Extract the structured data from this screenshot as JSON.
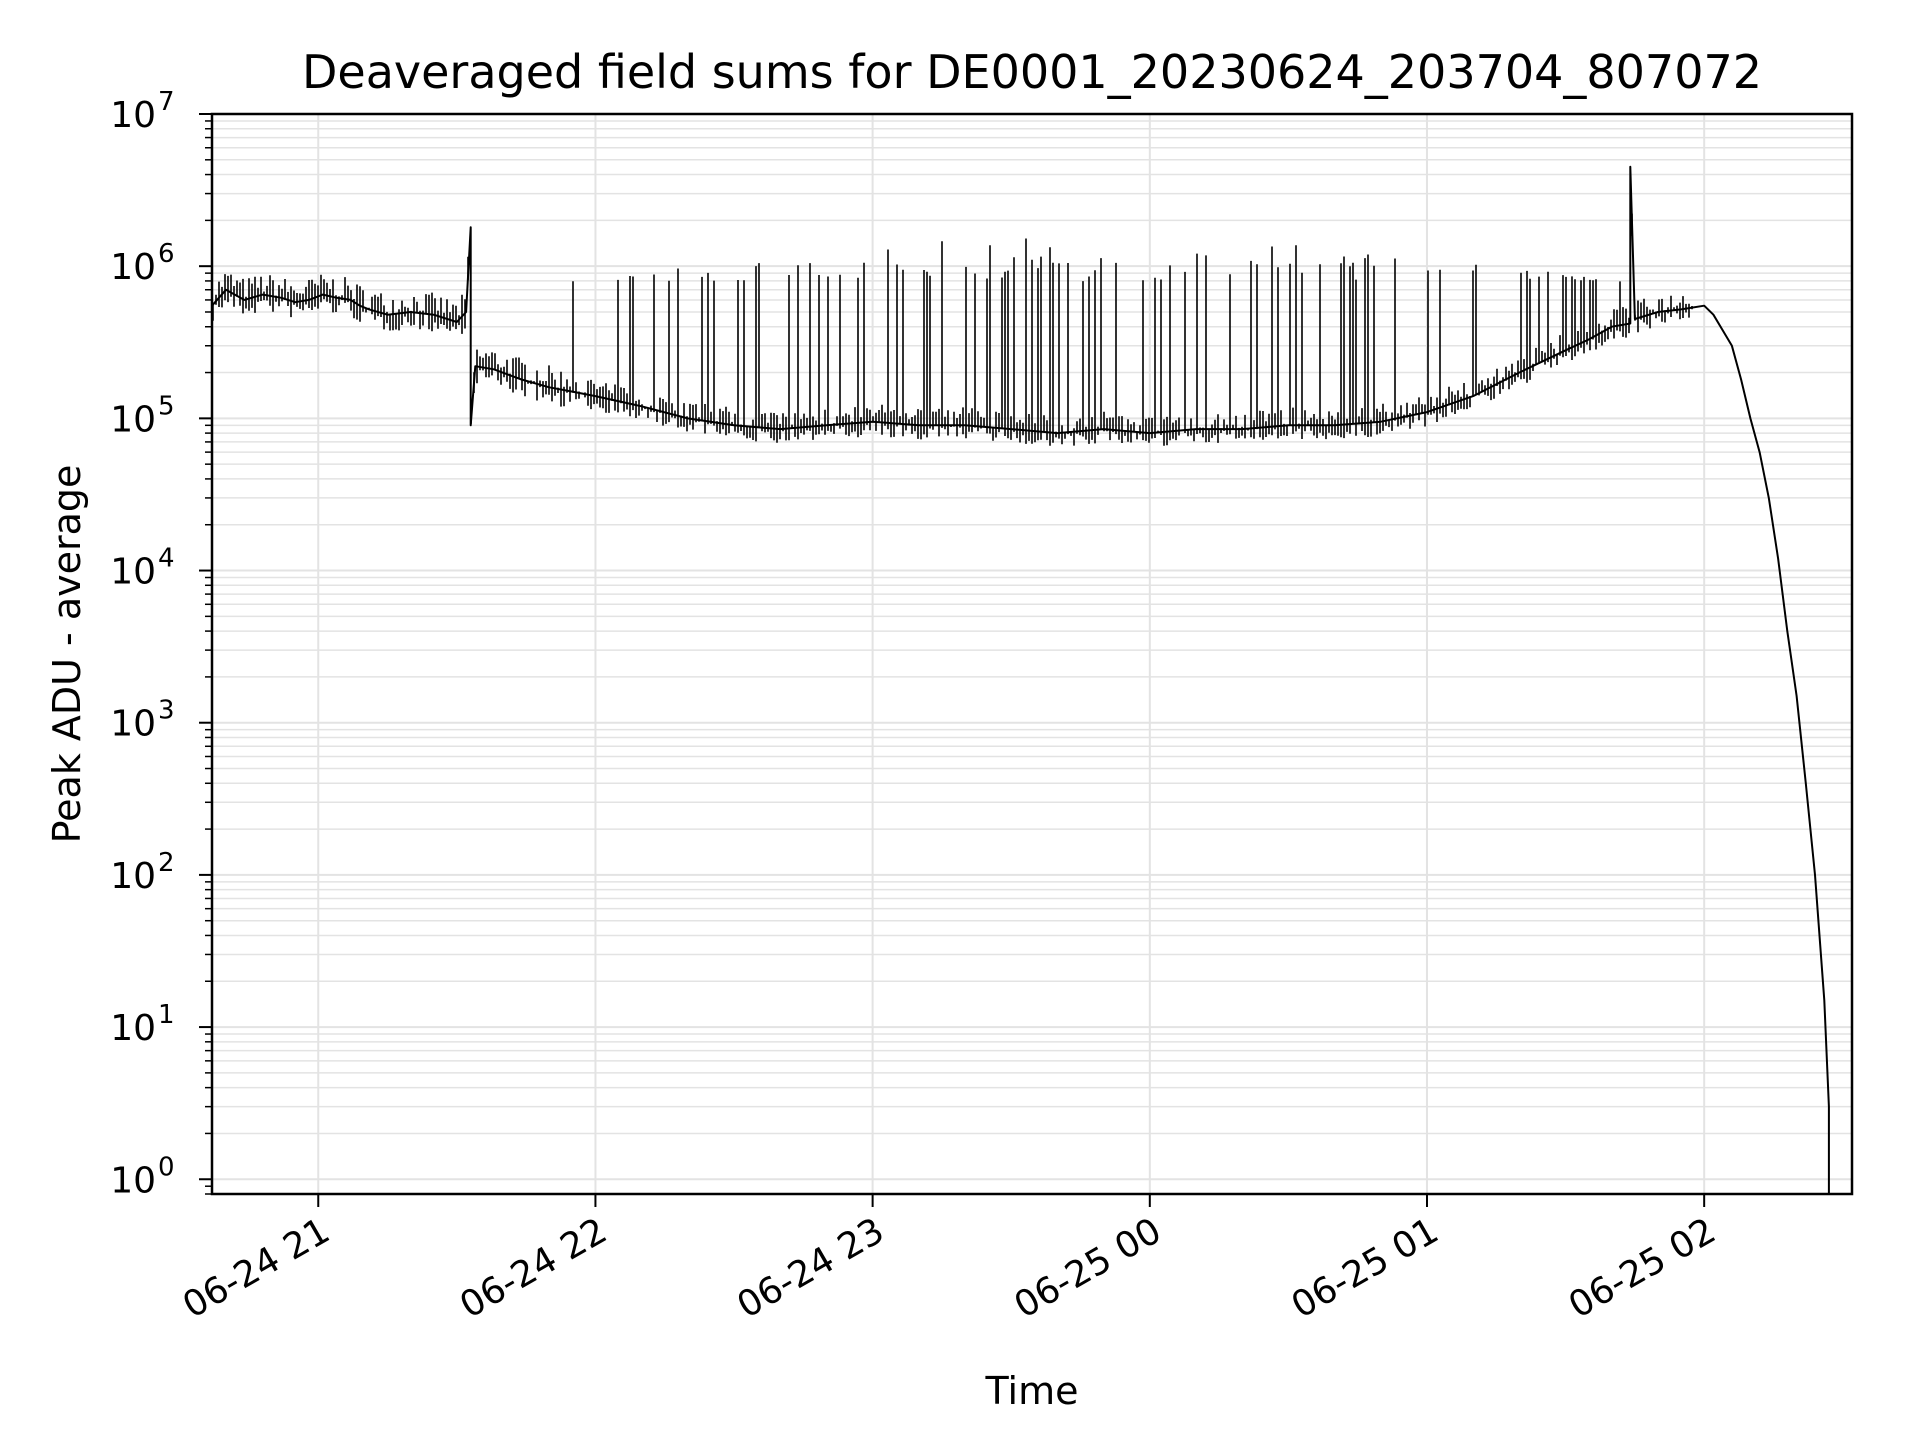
{
  "chart_data": {
    "type": "line",
    "title": "Deaveraged field sums for DE0001_20230624_203704_807072",
    "xlabel": "Time",
    "ylabel": "Peak ADU - average",
    "yscale": "log",
    "ylim": [
      0.8,
      10000000
    ],
    "xlim": [
      "2023-06-24 20:37",
      "2023-06-25 02:32"
    ],
    "grid": true,
    "line_color": "#000000",
    "grid_color": "#e3e3e3",
    "x_ticks": [
      {
        "value": "2023-06-24 21:00",
        "label": "06-24 21"
      },
      {
        "value": "2023-06-24 22:00",
        "label": "06-24 22"
      },
      {
        "value": "2023-06-24 23:00",
        "label": "06-24 23"
      },
      {
        "value": "2023-06-25 00:00",
        "label": "06-25 00"
      },
      {
        "value": "2023-06-25 01:00",
        "label": "06-25 01"
      },
      {
        "value": "2023-06-25 02:00",
        "label": "06-25 02"
      }
    ],
    "y_ticks": [
      {
        "value": 1,
        "base": "10",
        "exp": "0"
      },
      {
        "value": 10,
        "base": "10",
        "exp": "1"
      },
      {
        "value": 100,
        "base": "10",
        "exp": "2"
      },
      {
        "value": 1000,
        "base": "10",
        "exp": "3"
      },
      {
        "value": 10000,
        "base": "10",
        "exp": "4"
      },
      {
        "value": 100000,
        "base": "10",
        "exp": "5"
      },
      {
        "value": 1000000,
        "base": "10",
        "exp": "6"
      },
      {
        "value": 10000000,
        "base": "10",
        "exp": "7"
      }
    ],
    "series": [
      {
        "x": [
          "2023-06-24 20:37",
          "2023-06-24 20:40",
          "2023-06-24 20:44",
          "2023-06-24 20:48",
          "2023-06-24 20:52",
          "2023-06-24 20:55",
          "2023-06-24 20:58",
          "2023-06-24 21:01",
          "2023-06-24 21:04",
          "2023-06-24 21:07",
          "2023-06-24 21:09",
          "2023-06-24 21:11",
          "2023-06-24 21:15",
          "2023-06-24 21:20",
          "2023-06-24 21:25",
          "2023-06-24 21:30",
          "2023-06-24 21:32",
          "2023-06-24 21:33",
          "2023-06-24 21:33",
          "2023-06-24 21:34",
          "2023-06-24 21:38",
          "2023-06-24 21:44",
          "2023-06-24 21:50",
          "2023-06-24 21:55",
          "2023-06-24 22:00",
          "2023-06-24 22:10",
          "2023-06-24 22:20",
          "2023-06-24 22:30",
          "2023-06-24 22:40",
          "2023-06-24 22:50",
          "2023-06-24 23:00",
          "2023-06-24 23:10",
          "2023-06-24 23:20",
          "2023-06-24 23:30",
          "2023-06-24 23:40",
          "2023-06-24 23:50",
          "2023-06-25 00:00",
          "2023-06-25 00:10",
          "2023-06-25 00:20",
          "2023-06-25 00:30",
          "2023-06-25 00:40",
          "2023-06-25 00:50",
          "2023-06-25 01:00",
          "2023-06-25 01:10",
          "2023-06-25 01:20",
          "2023-06-25 01:30",
          "2023-06-25 01:35",
          "2023-06-25 01:40",
          "2023-06-25 01:44",
          "2023-06-25 01:44",
          "2023-06-25 01:45",
          "2023-06-25 01:50",
          "2023-06-25 01:55",
          "2023-06-25 02:00",
          "2023-06-25 02:02",
          "2023-06-25 02:04",
          "2023-06-25 02:06",
          "2023-06-25 02:08",
          "2023-06-25 02:10",
          "2023-06-25 02:12",
          "2023-06-25 02:14",
          "2023-06-25 02:16",
          "2023-06-25 02:18",
          "2023-06-25 02:20",
          "2023-06-25 02:22",
          "2023-06-25 02:24",
          "2023-06-25 02:26",
          "2023-06-25 02:27",
          "2023-06-25 02:27"
        ],
        "y": [
          550000,
          700000,
          600000,
          650000,
          620000,
          580000,
          600000,
          650000,
          620000,
          600000,
          550000,
          520000,
          480000,
          500000,
          480000,
          430000,
          500000,
          1800000,
          90000,
          220000,
          210000,
          180000,
          160000,
          150000,
          140000,
          120000,
          100000,
          90000,
          85000,
          90000,
          95000,
          90000,
          90000,
          85000,
          80000,
          85000,
          80000,
          85000,
          85000,
          90000,
          90000,
          95000,
          110000,
          140000,
          200000,
          280000,
          330000,
          400000,
          420000,
          4500000,
          450000,
          500000,
          520000,
          550000,
          480000,
          380000,
          300000,
          180000,
          100000,
          60000,
          30000,
          12000,
          4000,
          1500,
          400,
          100,
          15,
          3,
          0.8
        ]
      }
    ],
    "x_range_min": "2023-06-24 20:37",
    "x_range_max": "2023-06-25 02:27",
    "y_range_min": 0.8,
    "y_range_max": 4500000
  }
}
